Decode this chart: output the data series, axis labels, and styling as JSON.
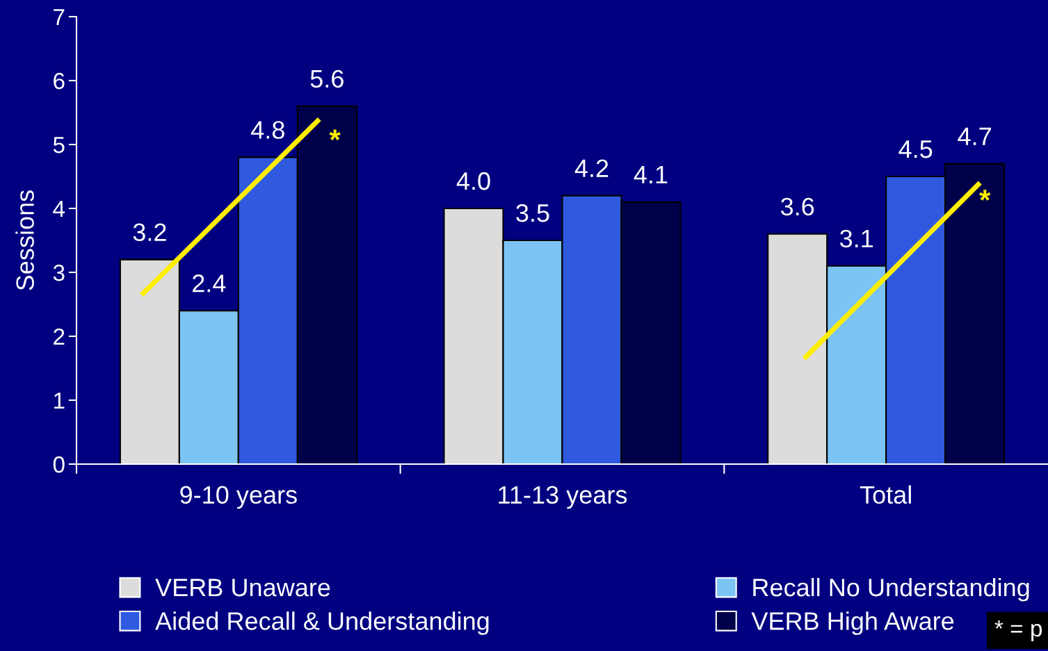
{
  "chart_data": {
    "type": "bar",
    "ylabel": "Sessions",
    "categories": [
      "9-10 years",
      "11-13 years",
      "Total"
    ],
    "series": [
      {
        "name": "VERB Unaware",
        "color": "#dcdcdc",
        "values": [
          3.2,
          4.0,
          3.6
        ],
        "value_labels": [
          "3.2",
          "4.0",
          "3.6"
        ]
      },
      {
        "name": "Recall No Understanding",
        "color": "#7cc4f4",
        "values": [
          2.4,
          3.5,
          3.1
        ],
        "value_labels": [
          "2.4",
          "3.5",
          "3.1"
        ]
      },
      {
        "name": "Aided Recall & Understanding",
        "color": "#2f5ae0",
        "values": [
          4.8,
          4.2,
          4.5
        ],
        "value_labels": [
          "4.8",
          "4.2",
          "4.5"
        ]
      },
      {
        "name": "VERB High Aware",
        "color": "#00004a",
        "values": [
          5.6,
          4.1,
          4.7
        ],
        "value_labels": [
          "5.6",
          "4.1",
          "4.7"
        ]
      }
    ],
    "ylim": [
      0,
      7
    ],
    "yticks": [
      0,
      1,
      2,
      3,
      4,
      5,
      6,
      7
    ],
    "legend": "bottom",
    "annotations": [
      "*",
      "*",
      "* = p"
    ]
  }
}
